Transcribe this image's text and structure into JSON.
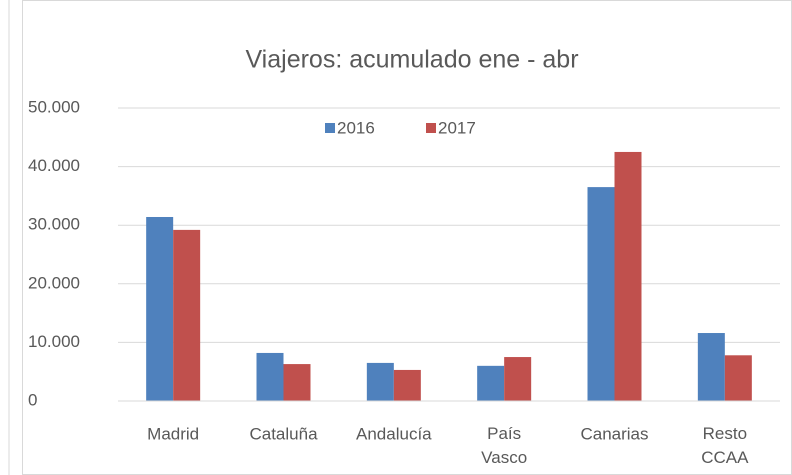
{
  "chart_data": {
    "type": "bar",
    "title": "Viajeros: acumulado ene - abr",
    "categories": [
      "Madrid",
      "Cataluña",
      "Andalucía",
      "País Vasco",
      "Canarias",
      "Resto CCAA"
    ],
    "series": [
      {
        "name": "2016",
        "color": "#4f81bd",
        "values": [
          31400,
          8200,
          6500,
          6000,
          36500,
          11600
        ]
      },
      {
        "name": "2017",
        "color": "#c0504d",
        "values": [
          29200,
          6300,
          5300,
          7500,
          42500,
          7800
        ]
      }
    ],
    "ylim": [
      0,
      50000
    ],
    "yticks": [
      0,
      {
        "value": 10000,
        "label": "10.000"
      },
      {
        "value": 20000,
        "label": "20.000"
      },
      {
        "value": 30000,
        "label": "30.000"
      },
      {
        "value": 40000,
        "label": "40.000"
      },
      {
        "value": 50000,
        "label": "50.000"
      }
    ],
    "grid": true,
    "legend": "top"
  }
}
